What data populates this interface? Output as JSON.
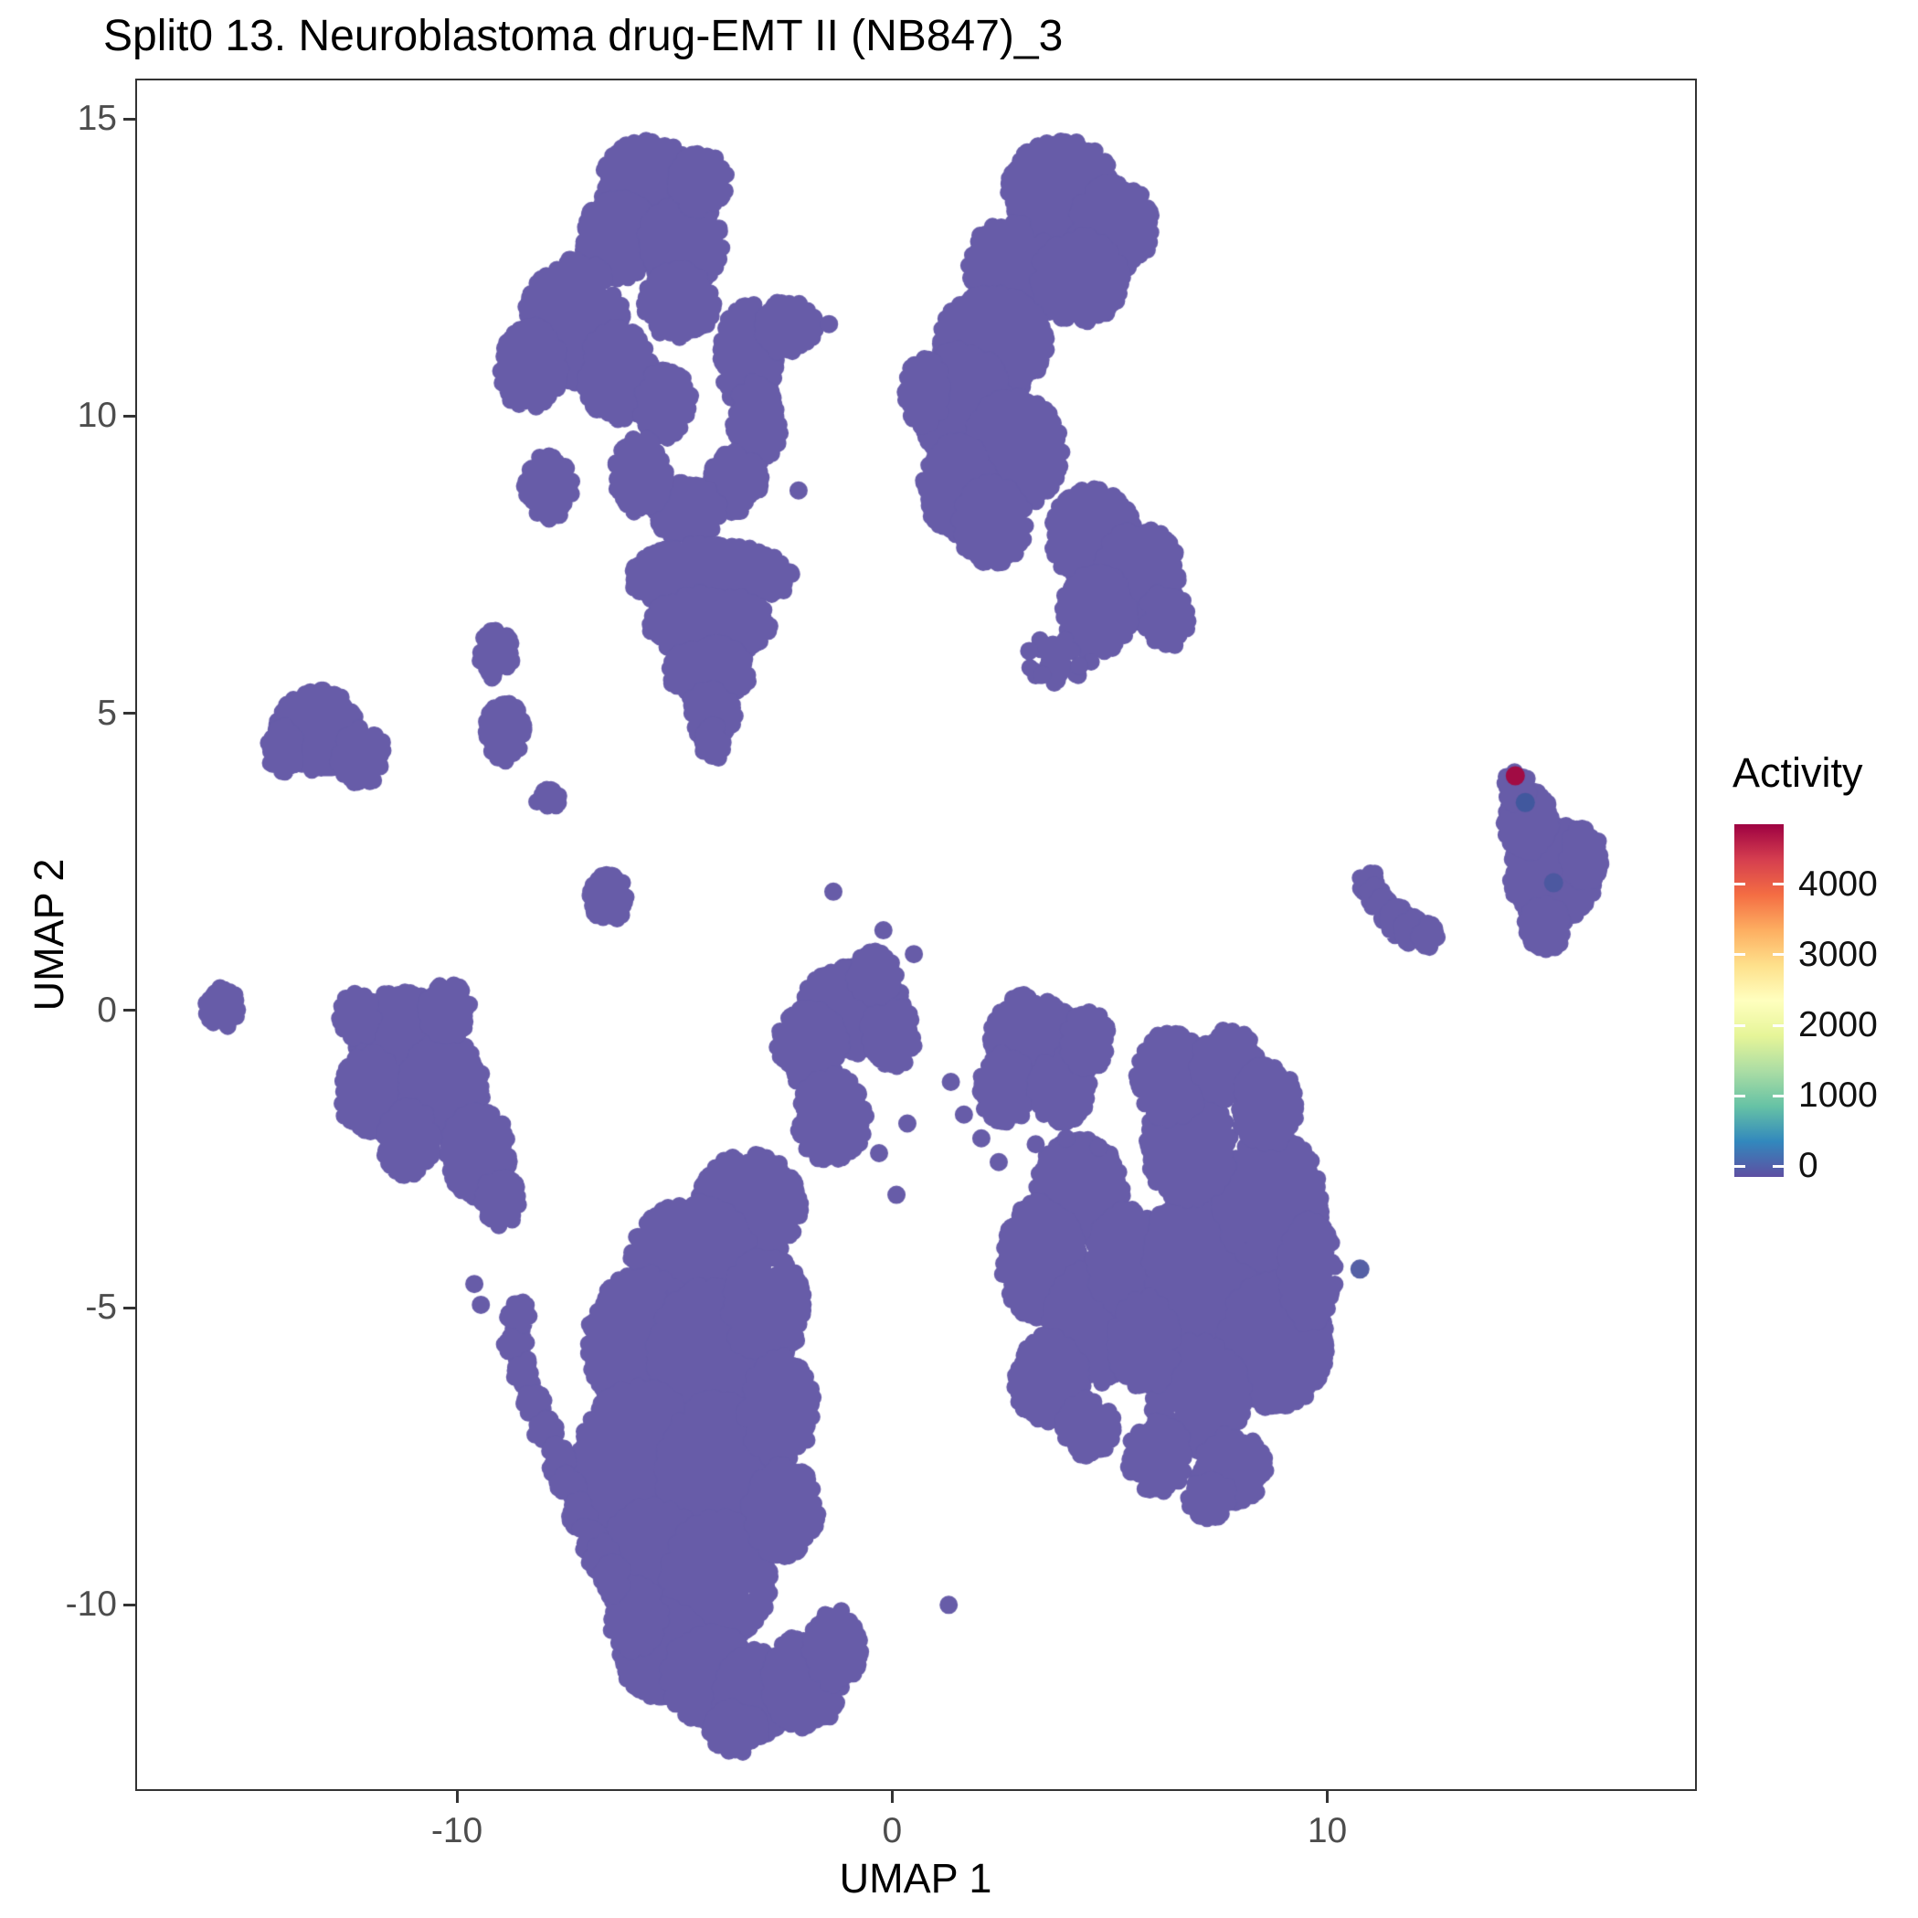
{
  "chart_data": {
    "type": "scatter",
    "title": "Split0 13. Neuroblastoma drug-EMT II (NB847)_3",
    "xlabel": "UMAP 1",
    "ylabel": "UMAP 2",
    "xlim": [
      -17.35,
      18.45
    ],
    "ylim": [
      -13.1,
      15.65
    ],
    "x_ticks": [
      -10,
      0,
      10
    ],
    "y_ticks": [
      15,
      10,
      5,
      0,
      -5,
      -10
    ],
    "grid": false,
    "background": "#FFFFFF",
    "point": {
      "color": "#675CA8",
      "radius_px": 9.5
    },
    "legend": {
      "title": "Activity",
      "position": "right",
      "ticks": [
        4000,
        3000,
        2000,
        1000,
        0
      ],
      "bar_value_top": 4850,
      "bar_value_bottom": -150,
      "colors_top_to_bottom": [
        "#9E0142",
        "#D53E4F",
        "#F46D43",
        "#FDAE61",
        "#FEE08B",
        "#FFFFBF",
        "#E6F598",
        "#ABDDA4",
        "#66C2A5",
        "#3288BD",
        "#5E4FA2"
      ]
    },
    "clusters": [
      {
        "name": "top-left-complex",
        "components": [
          [
            -5.6,
            13.9,
            1.1,
            0.75,
            330
          ],
          [
            -6.3,
            13.0,
            0.85,
            0.7,
            220
          ],
          [
            -4.8,
            12.9,
            0.9,
            0.75,
            240
          ],
          [
            -4.4,
            13.95,
            0.6,
            0.5,
            120
          ],
          [
            -4.9,
            11.9,
            0.8,
            0.6,
            170
          ],
          [
            -7.3,
            11.6,
            1.15,
            1.05,
            480
          ],
          [
            -8.3,
            10.8,
            0.7,
            0.75,
            180
          ],
          [
            -6.3,
            10.7,
            0.8,
            0.8,
            220
          ],
          [
            -7.9,
            8.8,
            0.55,
            0.55,
            110
          ],
          [
            -5.2,
            10.2,
            0.6,
            0.6,
            130
          ],
          [
            -3.3,
            11.0,
            0.65,
            0.9,
            200
          ],
          [
            -3.1,
            9.9,
            0.55,
            0.7,
            140
          ],
          [
            -3.6,
            8.9,
            0.6,
            0.55,
            130
          ],
          [
            -4.7,
            8.4,
            0.75,
            0.5,
            140
          ],
          [
            -5.8,
            9.0,
            0.6,
            0.65,
            140
          ],
          [
            -2.4,
            11.5,
            0.65,
            0.45,
            100
          ],
          [
            -4.2,
            7.3,
            1.9,
            0.55,
            400
          ],
          [
            -4.2,
            6.5,
            1.4,
            0.55,
            300
          ],
          [
            -4.2,
            5.7,
            0.95,
            0.5,
            200
          ],
          [
            -4.15,
            5.0,
            0.55,
            0.45,
            110
          ],
          [
            -4.1,
            4.5,
            0.28,
            0.3,
            40
          ]
        ]
      },
      {
        "name": "top-middle",
        "components": [
          [
            3.9,
            13.8,
            1.25,
            0.85,
            420
          ],
          [
            5.1,
            13.2,
            0.9,
            0.75,
            240
          ],
          [
            2.7,
            12.5,
            0.95,
            0.8,
            260
          ],
          [
            4.3,
            12.3,
            1.0,
            0.75,
            260
          ],
          [
            2.3,
            11.2,
            1.25,
            0.9,
            420
          ],
          [
            1.6,
            10.2,
            1.05,
            0.95,
            360
          ],
          [
            2.8,
            9.4,
            1.1,
            0.95,
            380
          ],
          [
            1.5,
            8.8,
            0.8,
            0.8,
            220
          ],
          [
            2.3,
            8.2,
            0.8,
            0.7,
            190
          ],
          [
            0.75,
            10.4,
            0.45,
            0.6,
            100
          ],
          [
            4.6,
            8.0,
            1.0,
            0.8,
            260
          ],
          [
            5.7,
            7.3,
            0.95,
            0.85,
            260
          ],
          [
            4.7,
            6.7,
            0.8,
            0.7,
            170
          ],
          [
            6.3,
            6.6,
            0.5,
            0.5,
            90
          ],
          [
            3.9,
            5.9,
            0.8,
            0.45,
            30
          ]
        ]
      },
      {
        "name": "right-teardrop",
        "components": [
          [
            15.2,
            2.3,
            1.0,
            0.85,
            330
          ],
          [
            14.6,
            3.2,
            0.55,
            0.55,
            130
          ],
          [
            14.35,
            3.75,
            0.3,
            0.3,
            45
          ],
          [
            15.9,
            2.6,
            0.4,
            0.5,
            90
          ],
          [
            15.0,
            1.4,
            0.5,
            0.4,
            90
          ]
        ]
      },
      {
        "name": "right-arc",
        "components": [
          [
            10.95,
            2.15,
            0.22,
            0.22,
            20
          ],
          [
            11.1,
            1.9,
            0.22,
            0.22,
            20
          ],
          [
            11.3,
            1.7,
            0.24,
            0.24,
            24
          ],
          [
            11.6,
            1.5,
            0.26,
            0.26,
            26
          ],
          [
            11.95,
            1.35,
            0.26,
            0.26,
            26
          ],
          [
            12.3,
            1.3,
            0.24,
            0.24,
            22
          ]
        ]
      },
      {
        "name": "left-small-clusters",
        "components": [
          [
            -13.2,
            4.7,
            0.95,
            0.7,
            260
          ],
          [
            -12.2,
            4.3,
            0.55,
            0.5,
            110
          ],
          [
            -14.0,
            4.4,
            0.35,
            0.4,
            60
          ],
          [
            -9.1,
            6.0,
            0.38,
            0.42,
            70
          ],
          [
            -8.9,
            4.7,
            0.45,
            0.5,
            90
          ],
          [
            -7.9,
            3.55,
            0.28,
            0.18,
            18
          ],
          [
            -6.5,
            1.9,
            0.45,
            0.4,
            80
          ],
          [
            -15.4,
            0.05,
            0.38,
            0.35,
            55
          ]
        ]
      },
      {
        "name": "left-middle",
        "components": [
          [
            -11.3,
            -0.5,
            1.05,
            0.85,
            380
          ],
          [
            -12.0,
            -1.4,
            0.7,
            0.7,
            180
          ],
          [
            -10.3,
            -1.3,
            0.9,
            0.85,
            300
          ],
          [
            -9.5,
            -2.4,
            0.75,
            0.75,
            200
          ],
          [
            -9.0,
            -3.2,
            0.45,
            0.45,
            80
          ],
          [
            -10.2,
            0.0,
            0.55,
            0.45,
            110
          ],
          [
            -11.1,
            -2.2,
            0.6,
            0.6,
            130
          ],
          [
            -12.3,
            -0.1,
            0.4,
            0.4,
            60
          ]
        ]
      },
      {
        "name": "center-bottom",
        "components": [
          [
            -0.9,
            0.0,
            1.2,
            0.75,
            380
          ],
          [
            -1.9,
            -0.6,
            0.75,
            0.65,
            190
          ],
          [
            0.0,
            -0.4,
            0.6,
            0.55,
            130
          ],
          [
            -0.4,
            0.6,
            0.5,
            0.4,
            80
          ],
          [
            -1.4,
            -1.8,
            0.8,
            0.75,
            220
          ],
          [
            -3.3,
            -3.3,
            1.2,
            0.9,
            400
          ],
          [
            -4.6,
            -4.2,
            1.4,
            1.0,
            500
          ],
          [
            -5.7,
            -5.6,
            1.3,
            1.2,
            550
          ],
          [
            -4.2,
            -5.8,
            1.3,
            1.2,
            550
          ],
          [
            -5.8,
            -7.6,
            1.4,
            1.3,
            650
          ],
          [
            -4.0,
            -7.8,
            1.3,
            1.3,
            600
          ],
          [
            -5.5,
            -9.4,
            1.2,
            1.1,
            450
          ],
          [
            -4.0,
            -9.6,
            1.2,
            1.1,
            450
          ],
          [
            -2.9,
            -5.0,
            0.9,
            0.9,
            280
          ],
          [
            -2.6,
            -6.7,
            0.8,
            0.9,
            240
          ],
          [
            -2.5,
            -8.4,
            0.8,
            0.8,
            220
          ],
          [
            -5.3,
            -10.8,
            1.0,
            0.8,
            300
          ],
          [
            -4.2,
            -11.2,
            1.0,
            0.8,
            300
          ],
          [
            -3.1,
            -11.5,
            0.9,
            0.75,
            250
          ],
          [
            -2.0,
            -11.3,
            0.85,
            0.8,
            240
          ],
          [
            -1.3,
            -10.7,
            0.6,
            0.65,
            140
          ],
          [
            -5.9,
            -10.2,
            0.6,
            0.6,
            130
          ],
          [
            -3.6,
            -12.1,
            0.6,
            0.4,
            100
          ],
          [
            -8.65,
            -5.6,
            0.26,
            0.26,
            25
          ],
          [
            -8.45,
            -6.1,
            0.26,
            0.26,
            25
          ],
          [
            -8.2,
            -6.6,
            0.26,
            0.26,
            25
          ],
          [
            -7.95,
            -7.1,
            0.26,
            0.26,
            25
          ],
          [
            -7.7,
            -7.55,
            0.26,
            0.26,
            25
          ],
          [
            -7.45,
            -8.0,
            0.26,
            0.26,
            25
          ],
          [
            -7.2,
            -8.45,
            0.26,
            0.26,
            25
          ],
          [
            -6.95,
            -8.85,
            0.26,
            0.26,
            25
          ],
          [
            -6.7,
            -9.2,
            0.28,
            0.28,
            28
          ],
          [
            -6.45,
            -9.55,
            0.3,
            0.3,
            32
          ],
          [
            -8.6,
            -5.1,
            0.28,
            0.22,
            22
          ]
        ]
      },
      {
        "name": "bottom-right",
        "components": [
          [
            3.2,
            -0.4,
            0.95,
            0.7,
            280
          ],
          [
            2.6,
            -1.3,
            0.6,
            0.6,
            130
          ],
          [
            3.9,
            -1.3,
            0.65,
            0.6,
            150
          ],
          [
            4.5,
            -0.5,
            0.5,
            0.5,
            100
          ],
          [
            4.3,
            -3.0,
            1.0,
            0.85,
            330
          ],
          [
            3.4,
            -4.2,
            0.9,
            1.0,
            330
          ],
          [
            4.6,
            -5.3,
            1.0,
            1.0,
            360
          ],
          [
            3.6,
            -6.2,
            0.8,
            0.75,
            210
          ],
          [
            5.4,
            -4.2,
            0.8,
            0.9,
            250
          ],
          [
            4.5,
            -7.0,
            0.6,
            0.5,
            110
          ],
          [
            7.6,
            -4.3,
            1.7,
            1.7,
            1000
          ],
          [
            8.7,
            -3.2,
            1.2,
            1.1,
            480
          ],
          [
            8.8,
            -5.6,
            1.2,
            1.1,
            480
          ],
          [
            7.0,
            -6.5,
            1.1,
            0.95,
            360
          ],
          [
            6.8,
            -2.3,
            1.0,
            0.9,
            330
          ],
          [
            6.4,
            -1.1,
            0.8,
            0.75,
            220
          ],
          [
            7.7,
            -0.9,
            0.7,
            0.6,
            160
          ],
          [
            8.6,
            -1.6,
            0.7,
            0.7,
            170
          ],
          [
            9.6,
            -4.4,
            0.6,
            0.9,
            180
          ],
          [
            6.1,
            -7.5,
            0.7,
            0.6,
            150
          ],
          [
            7.8,
            -7.7,
            0.8,
            0.6,
            180
          ],
          [
            5.8,
            -5.6,
            0.7,
            0.8,
            200
          ],
          [
            7.3,
            -8.2,
            0.5,
            0.35,
            80
          ]
        ]
      }
    ],
    "singles": [
      [
        -1.45,
        11.55
      ],
      [
        -2.15,
        8.75
      ],
      [
        -1.35,
        2.0
      ],
      [
        -0.2,
        1.35
      ],
      [
        0.5,
        0.95
      ],
      [
        3.45,
        5.65
      ],
      [
        4.3,
        5.8
      ],
      [
        3.15,
        6.05
      ],
      [
        1.3,
        -10.0
      ],
      [
        1.65,
        -1.75
      ],
      [
        2.05,
        -2.15
      ],
      [
        2.45,
        -2.55
      ],
      [
        1.35,
        -1.2
      ],
      [
        4.0,
        -2.15
      ],
      [
        4.75,
        -2.3
      ],
      [
        3.3,
        -2.25
      ],
      [
        0.1,
        -3.1
      ],
      [
        -0.3,
        -2.4
      ],
      [
        0.35,
        -1.9
      ],
      [
        -9.6,
        -4.6
      ],
      [
        -9.45,
        -4.95
      ]
    ],
    "special_points": [
      {
        "x": 14.55,
        "y": 3.5,
        "color": "#41589E"
      },
      {
        "x": 15.2,
        "y": 2.15,
        "color": "#4C58A0"
      },
      {
        "x": 10.75,
        "y": -4.35,
        "color": "#5560A5"
      },
      {
        "x": 14.32,
        "y": 3.95,
        "color": "#A10C44"
      }
    ]
  }
}
